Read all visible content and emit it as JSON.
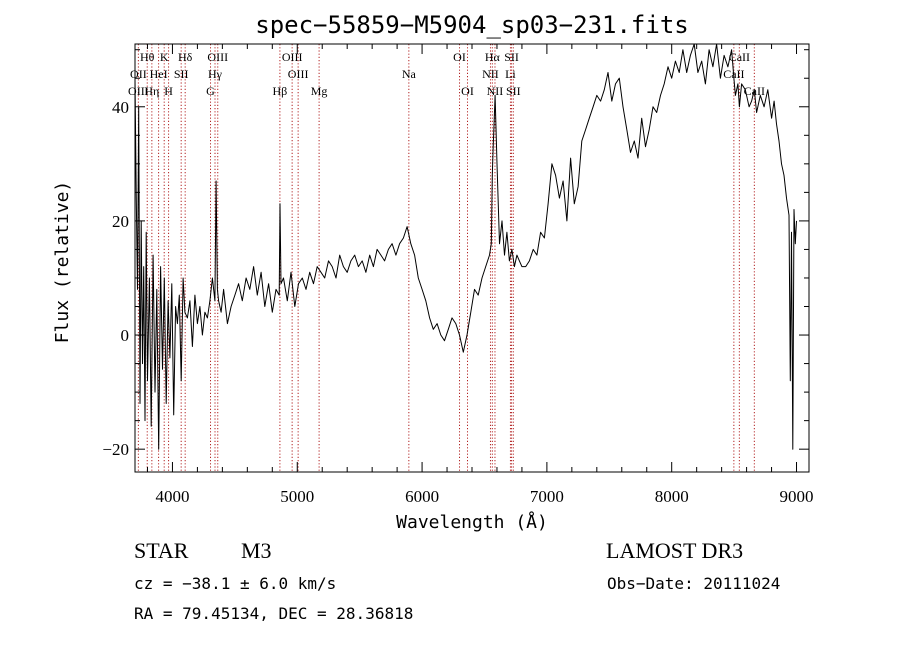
{
  "chart_data": {
    "type": "line",
    "title": "spec−55859−M5904_sp03−231.fits",
    "xlabel": "Wavelength (Å)",
    "ylabel": "Flux (relative)",
    "xlim": [
      3700,
      9100
    ],
    "ylim": [
      -24,
      51
    ],
    "xticks": [
      4000,
      5000,
      6000,
      7000,
      8000,
      9000
    ],
    "yticks": [
      -20,
      0,
      20,
      40
    ],
    "ytick_labels": [
      "−20",
      "0",
      "20",
      "40"
    ],
    "series": [
      {
        "name": "spectrum",
        "x": [
          3700,
          3710,
          3720,
          3730,
          3740,
          3750,
          3760,
          3770,
          3780,
          3790,
          3800,
          3815,
          3830,
          3845,
          3860,
          3875,
          3890,
          3905,
          3920,
          3935,
          3950,
          3965,
          3980,
          3995,
          4010,
          4025,
          4040,
          4055,
          4070,
          4085,
          4100,
          4120,
          4140,
          4160,
          4180,
          4200,
          4220,
          4240,
          4260,
          4280,
          4300,
          4320,
          4340,
          4350,
          4360,
          4370,
          4390,
          4410,
          4440,
          4470,
          4500,
          4530,
          4560,
          4590,
          4620,
          4650,
          4680,
          4710,
          4740,
          4770,
          4800,
          4830,
          4855,
          4862,
          4870,
          4890,
          4920,
          4950,
          4980,
          5010,
          5040,
          5070,
          5100,
          5130,
          5160,
          5190,
          5220,
          5250,
          5280,
          5310,
          5340,
          5370,
          5400,
          5430,
          5460,
          5490,
          5520,
          5550,
          5580,
          5610,
          5640,
          5670,
          5700,
          5730,
          5760,
          5790,
          5820,
          5850,
          5880,
          5910,
          5940,
          5970,
          6000,
          6030,
          6060,
          6090,
          6120,
          6150,
          6180,
          6210,
          6240,
          6270,
          6300,
          6330,
          6360,
          6390,
          6420,
          6450,
          6480,
          6510,
          6540,
          6555,
          6563,
          6570,
          6585,
          6600,
          6620,
          6640,
          6660,
          6680,
          6700,
          6720,
          6740,
          6760,
          6780,
          6800,
          6830,
          6860,
          6890,
          6920,
          6950,
          6980,
          7010,
          7040,
          7070,
          7100,
          7130,
          7160,
          7190,
          7220,
          7250,
          7280,
          7310,
          7340,
          7370,
          7400,
          7430,
          7460,
          7490,
          7520,
          7550,
          7580,
          7610,
          7640,
          7670,
          7700,
          7730,
          7760,
          7790,
          7820,
          7850,
          7880,
          7910,
          7940,
          7970,
          8000,
          8030,
          8060,
          8090,
          8120,
          8150,
          8180,
          8210,
          8240,
          8270,
          8300,
          8330,
          8360,
          8390,
          8420,
          8450,
          8480,
          8498,
          8510,
          8530,
          8542,
          8560,
          8590,
          8620,
          8640,
          8662,
          8680,
          8710,
          8740,
          8770,
          8800,
          8820,
          8840,
          8860,
          8880,
          8900,
          8920,
          8940,
          8950,
          8960,
          8970,
          8980,
          8990,
          9000
        ],
        "y": [
          45,
          25,
          8,
          40,
          -12,
          20,
          -5,
          12,
          -15,
          18,
          -8,
          10,
          -16,
          14,
          -10,
          8,
          -20,
          12,
          -6,
          10,
          -12,
          6,
          -4,
          9,
          -14,
          5,
          2,
          7,
          -8,
          10,
          4,
          3,
          6,
          -2,
          7,
          2,
          5,
          0,
          4,
          3,
          6,
          10,
          6,
          27,
          8,
          6,
          4,
          8,
          2,
          5,
          7,
          9,
          6,
          10,
          8,
          12,
          7,
          11,
          5,
          9,
          4,
          8,
          7,
          23,
          9,
          10,
          6,
          11,
          5,
          9,
          10,
          8,
          11,
          9,
          12,
          11,
          10,
          13,
          12,
          10,
          14,
          12,
          11,
          13,
          14,
          12,
          13,
          11,
          14,
          12,
          15,
          14,
          13,
          15,
          16,
          14,
          16,
          17,
          19,
          16,
          14,
          10,
          8,
          6,
          3,
          1,
          2,
          0,
          -1,
          1,
          3,
          2,
          0,
          -3,
          0,
          4,
          8,
          7,
          10,
          12,
          14,
          16,
          28,
          33,
          42,
          30,
          16,
          20,
          14,
          18,
          13,
          15,
          12,
          14,
          13,
          12,
          12,
          13,
          15,
          14,
          18,
          17,
          23,
          30,
          28,
          24,
          27,
          20,
          31,
          23,
          26,
          34,
          36,
          38,
          40,
          42,
          41,
          43,
          46,
          41,
          44,
          45,
          40,
          36,
          32,
          34,
          31,
          38,
          33,
          36,
          40,
          39,
          42,
          44,
          47,
          45,
          48,
          46,
          50,
          46,
          49,
          51,
          46,
          48,
          44,
          50,
          47,
          52,
          45,
          49,
          47,
          50,
          45,
          42,
          44,
          40,
          44,
          43,
          40,
          41,
          43,
          39,
          42,
          40,
          43,
          38,
          41,
          37,
          34,
          30,
          28,
          24,
          21,
          -8,
          18,
          -20,
          22,
          16,
          20
        ]
      }
    ],
    "spectral_lines": [
      {
        "label": "Hθ",
        "wavelength": 3798,
        "row": 1
      },
      {
        "label": "OII",
        "wavelength": 3727,
        "row": 2
      },
      {
        "label": "OIII",
        "wavelength": 3727,
        "row": 3
      },
      {
        "label": "HeI",
        "wavelength": 3889,
        "row": 2
      },
      {
        "label": "Hη",
        "wavelength": 3835,
        "row": 3
      },
      {
        "label": "K",
        "wavelength": 3934,
        "row": 1
      },
      {
        "label": "SII",
        "wavelength": 4070,
        "row": 2
      },
      {
        "label": "H",
        "wavelength": 3969,
        "row": 3
      },
      {
        "label": "Hδ",
        "wavelength": 4102,
        "row": 1
      },
      {
        "label": "OIII",
        "wavelength": 4363,
        "row": 1
      },
      {
        "label": "Hγ",
        "wavelength": 4341,
        "row": 2
      },
      {
        "label": "G",
        "wavelength": 4305,
        "row": 3
      },
      {
        "label": "OIII",
        "wavelength": 4959,
        "row": 1
      },
      {
        "label": "OIII",
        "wavelength": 5007,
        "row": 2
      },
      {
        "label": "Hβ",
        "wavelength": 4861,
        "row": 3
      },
      {
        "label": "Mg",
        "wavelength": 5175,
        "row": 3
      },
      {
        "label": "Na",
        "wavelength": 5894,
        "row": 2
      },
      {
        "label": "OI",
        "wavelength": 6300,
        "row": 1
      },
      {
        "label": "OI",
        "wavelength": 6364,
        "row": 3
      },
      {
        "label": "Hα",
        "wavelength": 6563,
        "row": 1
      },
      {
        "label": "SII",
        "wavelength": 6717,
        "row": 1
      },
      {
        "label": "NII",
        "wavelength": 6548,
        "row": 2
      },
      {
        "label": "Li",
        "wavelength": 6708,
        "row": 2
      },
      {
        "label": "NII",
        "wavelength": 6584,
        "row": 3
      },
      {
        "label": "SII",
        "wavelength": 6731,
        "row": 3
      },
      {
        "label": "CaII",
        "wavelength": 8542,
        "row": 1
      },
      {
        "label": "CaII",
        "wavelength": 8498,
        "row": 2
      },
      {
        "label": "CaII",
        "wavelength": 8662,
        "row": 3
      }
    ],
    "marker_wavelengths": [
      3727,
      3798,
      3835,
      3889,
      3934,
      3969,
      4070,
      4102,
      4305,
      4341,
      4363,
      4861,
      4959,
      5007,
      5175,
      5894,
      6300,
      6364,
      6548,
      6563,
      6584,
      6708,
      6717,
      6731,
      8498,
      8542,
      8662
    ]
  },
  "info": {
    "object_class": "STAR",
    "subclass": "M3",
    "survey": "LAMOST DR3",
    "cz": "cz = −38.1 ± 6.0 km/s",
    "obs_date": "Obs−Date: 20111024",
    "radec": "RA =  79.45134, DEC =  28.36818"
  },
  "colors": {
    "line": "#000000",
    "marker": "#b22222",
    "axis": "#000000"
  }
}
